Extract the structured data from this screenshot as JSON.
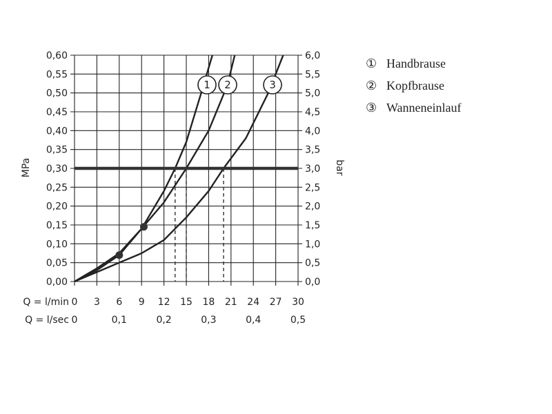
{
  "chart_data": {
    "type": "line",
    "y_left": {
      "label": "MPa",
      "range": [
        0,
        0.6
      ],
      "ticks": [
        "0,00",
        "0,05",
        "0,10",
        "0,15",
        "0,20",
        "0,25",
        "0,30",
        "0,35",
        "0,40",
        "0,45",
        "0,50",
        "0,55",
        "0,60"
      ]
    },
    "y_right": {
      "label": "bar",
      "range": [
        0,
        6
      ],
      "ticks": [
        "0,0",
        "0,5",
        "1,0",
        "1,5",
        "2,0",
        "2,5",
        "3,0",
        "3,5",
        "4,0",
        "4,5",
        "5,0",
        "5,5",
        "6,0"
      ]
    },
    "x_lmin": {
      "label": "Q = l/min",
      "range": [
        0,
        30
      ],
      "ticks": [
        "0",
        "3",
        "6",
        "9",
        "12",
        "15",
        "18",
        "21",
        "24",
        "27",
        "30"
      ]
    },
    "x_lsec": {
      "label": "Q = l/sec",
      "tick_values": [
        0,
        6,
        12,
        18,
        24,
        30
      ],
      "ticks": [
        "0",
        "0,1",
        "0,2",
        "0,3",
        "0,4",
        "0,5"
      ]
    },
    "grid": true,
    "reference_line": {
      "y": 0.3,
      "label": "3,0 bar"
    },
    "series": [
      {
        "name": "Handbrause",
        "marker": "1",
        "x": [
          0,
          3,
          6,
          9,
          12,
          13.5,
          15,
          17,
          18.5
        ],
        "y": [
          0,
          0.035,
          0.075,
          0.14,
          0.24,
          0.3,
          0.37,
          0.5,
          0.6
        ]
      },
      {
        "name": "Kopfbrause",
        "marker": "2",
        "x": [
          0,
          3,
          6,
          9,
          12,
          15,
          18,
          20.5,
          21.5
        ],
        "y": [
          0,
          0.03,
          0.07,
          0.14,
          0.21,
          0.3,
          0.4,
          0.52,
          0.6
        ]
      },
      {
        "name": "Wanneneinlauf",
        "marker": "3",
        "x": [
          0,
          3,
          6,
          9,
          12,
          15,
          18,
          20,
          23,
          26,
          28
        ],
        "y": [
          0,
          0.025,
          0.05,
          0.075,
          0.11,
          0.17,
          0.24,
          0.3,
          0.38,
          0.5,
          0.6
        ]
      }
    ],
    "points": [
      {
        "x": 6,
        "y": 0.07
      },
      {
        "x": 9.3,
        "y": 0.145
      }
    ],
    "dashed_drops": [
      13.5,
      15,
      20
    ]
  },
  "legend": [
    {
      "marker": "①",
      "label": "Handbrause"
    },
    {
      "marker": "②",
      "label": "Kopfbrause"
    },
    {
      "marker": "③",
      "label": "Wanneneinlauf"
    }
  ]
}
